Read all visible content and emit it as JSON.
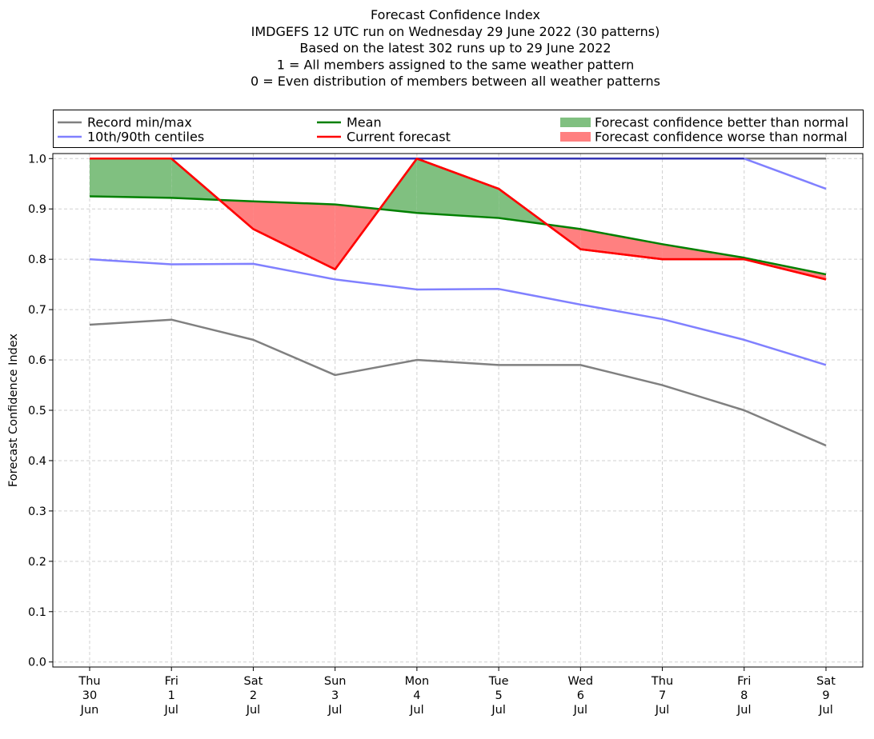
{
  "chart_data": {
    "type": "line",
    "title": [
      "Forecast Confidence Index",
      "IMDGEFS 12 UTC run on Wednesday 29 June 2022 (30 patterns)",
      "Based on the latest 302 runs up to 29 June 2022",
      "1 = All members assigned to the same weather pattern",
      "0 = Even distribution of members between all weather patterns"
    ],
    "ylabel": "Forecast Confidence Index",
    "xlabel": "",
    "ylim": [
      -0.01,
      1.01
    ],
    "yticks": [
      "0.0",
      "0.1",
      "0.2",
      "0.3",
      "0.4",
      "0.5",
      "0.6",
      "0.7",
      "0.8",
      "0.9",
      "1.0"
    ],
    "grid": true,
    "legend_position": "top",
    "categories": [
      [
        "Thu",
        "30",
        "Jun"
      ],
      [
        "Fri",
        "1",
        "Jul"
      ],
      [
        "Sat",
        "2",
        "Jul"
      ],
      [
        "Sun",
        "3",
        "Jul"
      ],
      [
        "Mon",
        "4",
        "Jul"
      ],
      [
        "Tue",
        "5",
        "Jul"
      ],
      [
        "Wed",
        "6",
        "Jul"
      ],
      [
        "Thu",
        "7",
        "Jul"
      ],
      [
        "Fri",
        "8",
        "Jul"
      ],
      [
        "Sat",
        "9",
        "Jul"
      ]
    ],
    "series": [
      {
        "name": "Record min/max",
        "role": "record-min",
        "color": "#808080",
        "values": [
          0.67,
          0.68,
          0.64,
          0.57,
          0.6,
          0.59,
          0.59,
          0.55,
          0.5,
          0.43
        ]
      },
      {
        "name": "Record min/max",
        "role": "record-max",
        "color": "#808080",
        "values": [
          1.0,
          1.0,
          1.0,
          1.0,
          1.0,
          1.0,
          1.0,
          1.0,
          1.0,
          1.0
        ]
      },
      {
        "name": "10th/90th centiles",
        "role": "p10",
        "color": "#8080ff",
        "values": [
          0.8,
          0.79,
          0.791,
          0.76,
          0.74,
          0.741,
          0.71,
          0.681,
          0.64,
          0.59
        ]
      },
      {
        "name": "10th/90th centiles",
        "role": "p90",
        "color": "#8080ff",
        "values": [
          1.0,
          1.0,
          1.0,
          1.0,
          1.0,
          1.0,
          1.0,
          1.0,
          1.0,
          0.94
        ]
      },
      {
        "name": "Mean",
        "role": "mean",
        "color": "#008000",
        "values": [
          0.925,
          0.922,
          0.915,
          0.909,
          0.892,
          0.882,
          0.86,
          0.83,
          0.803,
          0.77
        ]
      },
      {
        "name": "Current forecast",
        "role": "current",
        "color": "#ff0000",
        "values": [
          1.0,
          1.0,
          0.86,
          0.78,
          1.0,
          0.94,
          0.82,
          0.8,
          0.8,
          0.76
        ]
      }
    ],
    "fills": [
      {
        "name": "Forecast confidence better than normal",
        "color": "#80c080"
      },
      {
        "name": "Forecast confidence worse than normal",
        "color": "#ff8080"
      }
    ],
    "legend": [
      {
        "label": "Record min/max",
        "kind": "line",
        "color": "#808080"
      },
      {
        "label": "10th/90th centiles",
        "kind": "line",
        "color": "#8080ff"
      },
      {
        "label": "Mean",
        "kind": "line",
        "color": "#008000"
      },
      {
        "label": "Current forecast",
        "kind": "line",
        "color": "#ff0000"
      },
      {
        "label": "Forecast confidence better than normal",
        "kind": "patch",
        "color": "#80c080"
      },
      {
        "label": "Forecast confidence worse than normal",
        "kind": "patch",
        "color": "#ff8080"
      }
    ],
    "overlap_color": "#3535b5"
  }
}
